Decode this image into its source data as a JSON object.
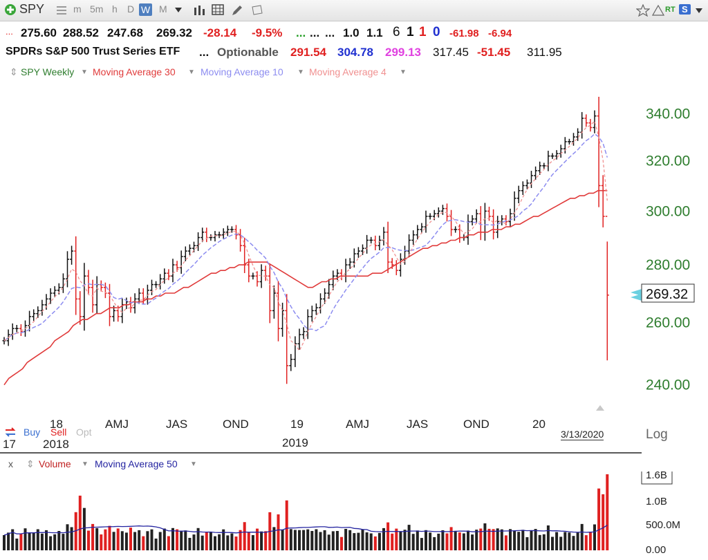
{
  "toolbar": {
    "symbol": "SPY",
    "intervals": [
      "m",
      "5m",
      "h",
      "D",
      "W",
      "M"
    ],
    "selected_interval": "W",
    "rt_label": "RT",
    "s_label": "S"
  },
  "quote_row": {
    "prefix": "...",
    "open": "275.60",
    "high": "288.52",
    "low": "247.68",
    "close": "269.32",
    "change": "-28.14",
    "change_pct": "-9.5%",
    "dots1": "...",
    "dots2": "...",
    "dots3": "...",
    "v1": "1.0",
    "v2": "1.1",
    "v3": "6",
    "v4": "1",
    "v5": "1",
    "v6": "0",
    "v7": "-61.98",
    "v8": "-6.94"
  },
  "name_row": {
    "name": "SPDRs S&P 500 Trust Series ETF",
    "dots": "...",
    "optionable": "Optionable",
    "n1": "291.54",
    "n2": "304.78",
    "n3": "299.13",
    "n4": "317.45",
    "n5": "-51.45",
    "n6": "311.95"
  },
  "legend": {
    "series": "SPY Weekly",
    "ma30": "Moving Average 30",
    "ma10": "Moving Average 10",
    "ma4": "Moving Average 4"
  },
  "bottom_controls": {
    "buy": "Buy",
    "sell": "Sell",
    "opt": "Opt"
  },
  "price_box": "269.32",
  "date_label": "3/13/2020",
  "log_label": "Log",
  "volume_legend": {
    "x": "x",
    "volume": "Volume",
    "ma50": "Moving Average 50"
  },
  "colors": {
    "ma30": "#e03a3a",
    "ma10": "#8c8cf0",
    "ma4": "#f09090",
    "up_bar": "#111111",
    "down_bar": "#e02020",
    "axis_text": "#2e7d2e",
    "volume_ma": "#2323a0"
  },
  "chart_data": [
    {
      "type": "ohlc",
      "series_name": "SPY Weekly",
      "scale": "log",
      "ylim": [
        233,
        345
      ],
      "y_ticks": [
        "340.00",
        "320.00",
        "300.00",
        "280.00",
        "260.00",
        "240.00"
      ],
      "x_tick_labels": [
        "18",
        "AMJ",
        "JAS",
        "OND",
        "19",
        "AMJ",
        "JAS",
        "OND",
        "20"
      ],
      "x_year_labels": [
        "17",
        "2018",
        "2019"
      ],
      "last_close": 269.32,
      "weekly_close": [
        254,
        256,
        258,
        258,
        257,
        259,
        262,
        263,
        264,
        266,
        268,
        270,
        271,
        272,
        275,
        282,
        285,
        268,
        262,
        276,
        272,
        266,
        273,
        272,
        270,
        262,
        264,
        262,
        266,
        267,
        265,
        268,
        270,
        268,
        271,
        273,
        273,
        275,
        277,
        276,
        280,
        279,
        283,
        285,
        286,
        287,
        290,
        292,
        290,
        290,
        291,
        291,
        292,
        293,
        293,
        291,
        287,
        280,
        276,
        276,
        274,
        278,
        276,
        264,
        270,
        258,
        264,
        246,
        248,
        253,
        256,
        257,
        262,
        264,
        265,
        268,
        270,
        273,
        276,
        277,
        276,
        280,
        281,
        284,
        285,
        286,
        289,
        289,
        287,
        289,
        292,
        281,
        280,
        278,
        282,
        285,
        289,
        291,
        293,
        294,
        298,
        298,
        299,
        300,
        301,
        298,
        293,
        293,
        290,
        290,
        296,
        297,
        299,
        292,
        300,
        298,
        292,
        296,
        297,
        296,
        299,
        305,
        308,
        310,
        311,
        314,
        316,
        318,
        318,
        322,
        322,
        323,
        325,
        328,
        328,
        330,
        332,
        338,
        336,
        334,
        339,
        310,
        298,
        269.32
      ],
      "ma30": [
        240,
        242,
        243,
        244,
        245,
        247,
        248,
        249,
        250,
        251,
        252,
        254,
        255,
        256,
        257,
        259,
        260,
        261,
        261,
        262,
        263,
        263,
        264,
        265,
        265,
        265,
        266,
        266,
        267,
        267,
        267,
        268,
        268,
        269,
        269,
        270,
        270,
        270,
        271,
        272,
        272,
        273,
        274,
        275,
        276,
        277,
        277,
        278,
        278,
        279,
        279,
        280,
        280,
        281,
        281,
        281,
        281,
        281,
        280,
        279,
        278,
        277,
        276,
        275,
        274,
        273,
        272,
        272,
        273,
        274,
        274,
        275,
        275,
        276,
        276,
        276,
        276,
        276,
        276,
        276,
        277,
        277,
        277,
        278,
        279,
        280,
        281,
        282,
        283,
        284,
        285,
        286,
        286,
        287,
        287,
        288,
        288,
        289,
        289,
        290,
        290,
        291,
        291,
        292,
        292,
        292,
        293,
        293,
        293,
        294,
        294,
        295,
        295,
        296,
        297,
        298,
        298,
        299,
        300,
        301,
        302,
        303,
        304,
        305,
        305,
        306,
        306,
        307,
        307,
        308,
        308,
        308
      ]
    },
    {
      "type": "bar",
      "series_name": "Volume",
      "y_ticks": [
        "1.6B",
        "1.0B",
        "500.0M",
        "0.00"
      ],
      "ylim": [
        0,
        1600
      ]
    }
  ]
}
